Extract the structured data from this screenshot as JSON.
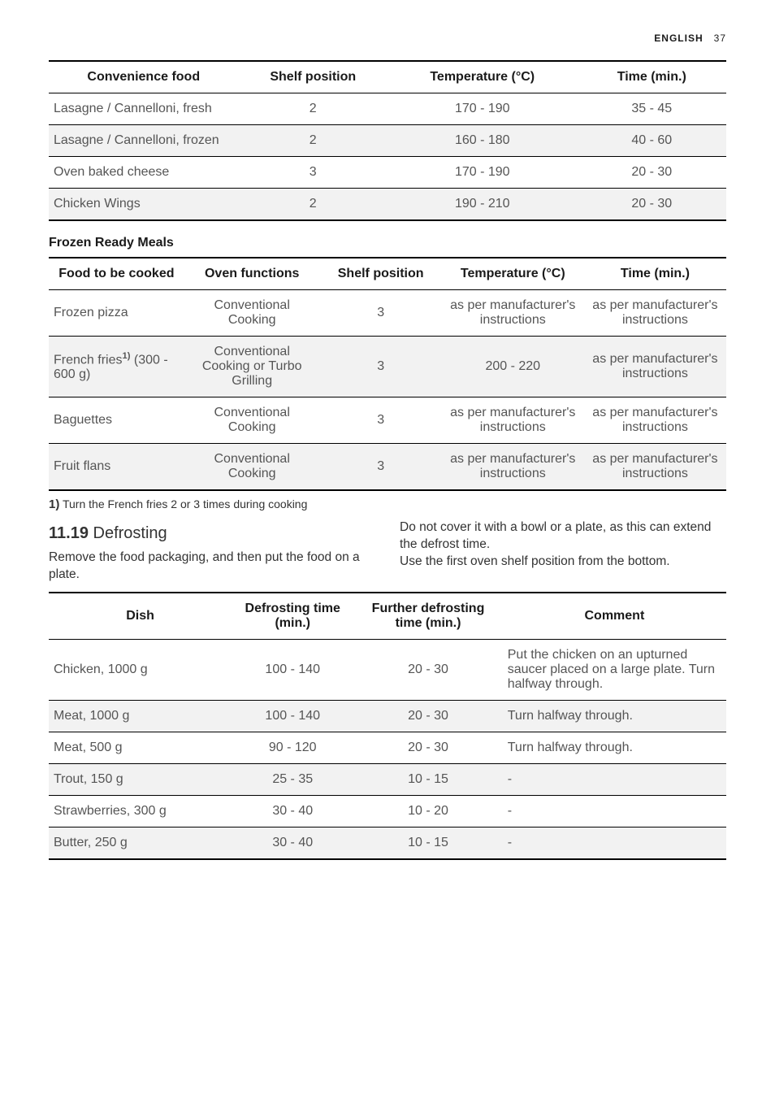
{
  "header": {
    "language": "ENGLISH",
    "page_number": "37"
  },
  "table1": {
    "headers": [
      "Convenience food",
      "Shelf position",
      "Temperature (°C)",
      "Time (min.)"
    ],
    "rows": [
      [
        "Lasagne / Cannelloni, fresh",
        "2",
        "170 - 190",
        "35 - 45"
      ],
      [
        "Lasagne / Cannelloni, frozen",
        "2",
        "160 - 180",
        "40 - 60"
      ],
      [
        "Oven baked cheese",
        "3",
        "170 - 190",
        "20 - 30"
      ],
      [
        "Chicken Wings",
        "2",
        "190 - 210",
        "20 - 30"
      ]
    ]
  },
  "section2_heading": "Frozen Ready Meals",
  "table2": {
    "headers": [
      "Food to be cooked",
      "Oven functions",
      "Shelf position",
      "Temperature (°C)",
      "Time (min.)"
    ],
    "rows": [
      [
        "Frozen pizza",
        "Conventional Cooking",
        "3",
        "as per manufacturer's instructions",
        "as per manufacturer's instructions"
      ],
      [
        "French fries__SUP__ (300 - 600 g)",
        "Conventional Cooking or Turbo Grilling",
        "3",
        "200 - 220",
        "as per manufacturer's instructions"
      ],
      [
        "Baguettes",
        "Conventional Cooking",
        "3",
        "as per manufacturer's instructions",
        "as per manufacturer's instructions"
      ],
      [
        "Fruit flans",
        "Conventional Cooking",
        "3",
        "as per manufacturer's instructions",
        "as per manufacturer's instructions"
      ]
    ]
  },
  "footnote": {
    "num": "1)",
    "text": " Turn the French fries 2 or 3 times during cooking"
  },
  "subsection": {
    "number": "11.19",
    "title": " Defrosting"
  },
  "body_left": "Remove the food packaging, and then put the food on a plate.",
  "body_right": "Do not cover it with a bowl or a plate, as this can extend the defrost time.\nUse the first oven shelf position from the bottom.",
  "table3": {
    "headers": [
      "Dish",
      "Defrosting time (min.)",
      "Further defrosting time (min.)",
      "Comment"
    ],
    "rows": [
      [
        "Chicken, 1000 g",
        "100 - 140",
        "20 - 30",
        "Put the chicken on an upturned saucer placed on a large plate. Turn halfway through."
      ],
      [
        "Meat, 1000 g",
        "100 - 140",
        "20 - 30",
        "Turn halfway through."
      ],
      [
        "Meat, 500 g",
        "90 - 120",
        "20 - 30",
        "Turn halfway through."
      ],
      [
        "Trout, 150 g",
        "25 - 35",
        "10 - 15",
        "-"
      ],
      [
        "Strawberries, 300 g",
        "30 - 40",
        "10 - 20",
        "-"
      ],
      [
        "Butter, 250 g",
        "30 - 40",
        "10 - 15",
        "-"
      ]
    ]
  },
  "colors": {
    "text_primary": "#1a1a1a",
    "text_secondary": "#555555",
    "row_alt_bg": "#f2f2f2",
    "border": "#000000",
    "page_bg": "#ffffff"
  }
}
